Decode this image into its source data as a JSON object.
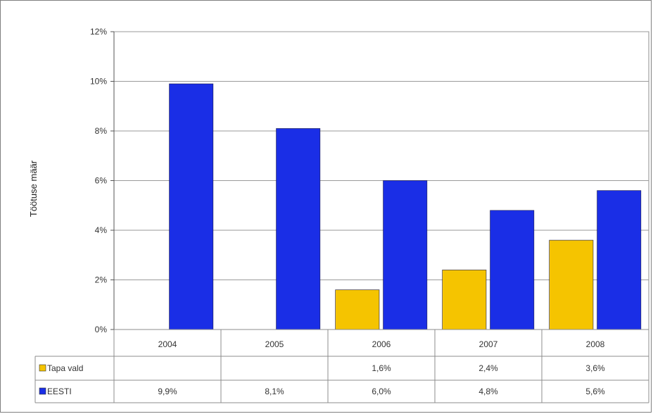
{
  "chart_data": {
    "type": "bar",
    "title": "",
    "xlabel": "",
    "ylabel": "Töötuse määr",
    "categories": [
      "2004",
      "2005",
      "2006",
      "2007",
      "2008"
    ],
    "ylim": [
      0,
      12
    ],
    "yticks": [
      "0%",
      "2%",
      "4%",
      "6%",
      "8%",
      "10%",
      "12%"
    ],
    "grid": true,
    "legend": "data-table",
    "series": [
      {
        "name": "Tapa vald",
        "color": "#f5c400",
        "values": [
          null,
          null,
          1.6,
          2.4,
          3.6
        ],
        "labels": [
          "",
          "",
          "1,6%",
          "2,4%",
          "3,6%"
        ]
      },
      {
        "name": "EESTI",
        "color": "#1a2ee6",
        "values": [
          9.9,
          8.1,
          6.0,
          4.8,
          5.6
        ],
        "labels": [
          "9,9%",
          "8,1%",
          "6,0%",
          "4,8%",
          "5,6%"
        ]
      }
    ]
  }
}
